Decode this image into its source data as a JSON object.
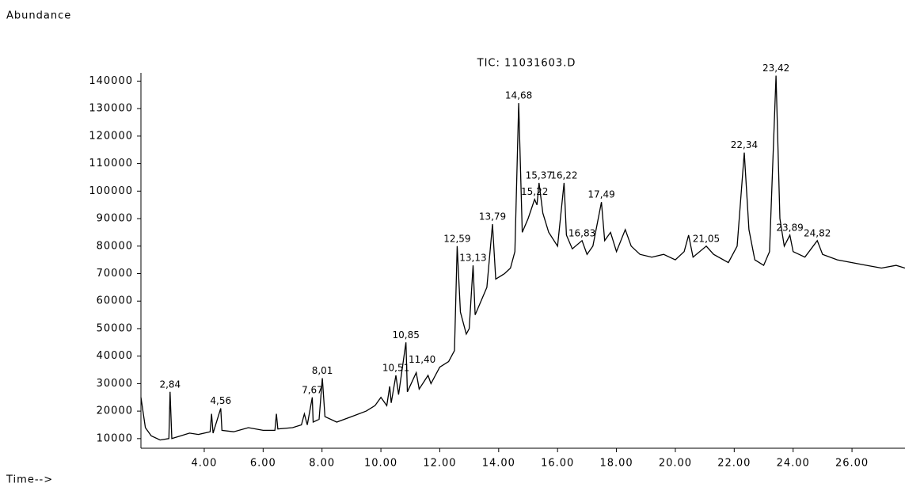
{
  "chart_data": {
    "type": "line",
    "title": "TIC: 11031603.D",
    "y_label": "Abundance",
    "x_label": "Time-->",
    "color": "#000000",
    "xlim": [
      1.85,
      27.8
    ],
    "ylim": [
      6500,
      143000
    ],
    "xticks": [
      {
        "value": 4,
        "label": "4.00"
      },
      {
        "value": 6,
        "label": "6.00"
      },
      {
        "value": 8,
        "label": "8.00"
      },
      {
        "value": 10,
        "label": "10.00"
      },
      {
        "value": 12,
        "label": "12.00"
      },
      {
        "value": 14,
        "label": "14.00"
      },
      {
        "value": 16,
        "label": "16.00"
      },
      {
        "value": 18,
        "label": "18.00"
      },
      {
        "value": 20,
        "label": "20.00"
      },
      {
        "value": 22,
        "label": "22.00"
      },
      {
        "value": 24,
        "label": "24.00"
      },
      {
        "value": 26,
        "label": "26.00"
      }
    ],
    "yticks": [
      10000,
      20000,
      30000,
      40000,
      50000,
      60000,
      70000,
      80000,
      90000,
      100000,
      110000,
      120000,
      130000,
      140000
    ],
    "x": [
      1.85,
      2.0,
      2.2,
      2.5,
      2.8,
      2.84,
      2.9,
      3.2,
      3.5,
      3.8,
      4.2,
      4.25,
      4.3,
      4.56,
      4.6,
      5.0,
      5.5,
      6.0,
      6.4,
      6.45,
      6.5,
      7.0,
      7.3,
      7.4,
      7.5,
      7.67,
      7.7,
      7.9,
      8.01,
      8.1,
      8.5,
      9.0,
      9.5,
      9.8,
      10.0,
      10.2,
      10.3,
      10.35,
      10.51,
      10.6,
      10.85,
      10.9,
      11.2,
      11.3,
      11.6,
      11.7,
      12.0,
      12.3,
      12.5,
      12.59,
      12.7,
      12.9,
      13.0,
      13.13,
      13.2,
      13.4,
      13.6,
      13.79,
      13.9,
      14.2,
      14.4,
      14.55,
      14.68,
      14.8,
      15.0,
      15.22,
      15.3,
      15.37,
      15.5,
      15.7,
      16.0,
      16.22,
      16.3,
      16.5,
      16.83,
      17.0,
      17.2,
      17.49,
      17.6,
      17.8,
      18.0,
      18.3,
      18.5,
      18.8,
      19.2,
      19.6,
      20.0,
      20.3,
      20.45,
      20.6,
      21.05,
      21.3,
      21.8,
      22.1,
      22.34,
      22.5,
      22.7,
      23.0,
      23.2,
      23.42,
      23.55,
      23.7,
      23.89,
      24.0,
      24.4,
      24.82,
      25.0,
      25.5,
      26.0,
      26.5,
      27.0,
      27.5,
      27.8
    ],
    "values": [
      25000,
      14000,
      11000,
      9500,
      10000,
      27000,
      10000,
      11000,
      12000,
      11500,
      12500,
      19000,
      12000,
      21000,
      13000,
      12500,
      14000,
      13000,
      13000,
      19000,
      13500,
      14000,
      15000,
      19000,
      15000,
      25000,
      16000,
      17000,
      32000,
      18000,
      16000,
      18000,
      20000,
      22000,
      25000,
      22000,
      29000,
      23000,
      33000,
      26000,
      45000,
      27000,
      34000,
      28000,
      33000,
      30000,
      36000,
      38000,
      42000,
      80000,
      56000,
      48000,
      50000,
      73000,
      55000,
      60000,
      65000,
      88000,
      68000,
      70000,
      72000,
      78000,
      132000,
      85000,
      90000,
      97000,
      95000,
      103000,
      92000,
      85000,
      80000,
      103000,
      84000,
      79000,
      82000,
      77000,
      80000,
      96000,
      82000,
      85000,
      78000,
      86000,
      80000,
      77000,
      76000,
      77000,
      75000,
      78000,
      84000,
      76000,
      80000,
      77000,
      74000,
      80000,
      114000,
      86000,
      75000,
      73000,
      78000,
      142000,
      90000,
      80000,
      84000,
      78000,
      76000,
      82000,
      77000,
      75000,
      74000,
      73000,
      72000,
      73000,
      72000
    ],
    "annotations": [
      {
        "x": 2.84,
        "y": 27000,
        "text": "2,84"
      },
      {
        "x": 4.56,
        "y": 21000,
        "text": "4,56"
      },
      {
        "x": 7.67,
        "y": 25000,
        "text": "7,67"
      },
      {
        "x": 8.01,
        "y": 32000,
        "text": "8,01"
      },
      {
        "x": 10.51,
        "y": 33000,
        "text": "10,51"
      },
      {
        "x": 10.85,
        "y": 45000,
        "text": "10,85"
      },
      {
        "x": 11.4,
        "y": 36000,
        "text": "11,40"
      },
      {
        "x": 12.59,
        "y": 80000,
        "text": "12,59"
      },
      {
        "x": 13.13,
        "y": 73000,
        "text": "13,13"
      },
      {
        "x": 13.79,
        "y": 88000,
        "text": "13,79"
      },
      {
        "x": 14.68,
        "y": 132000,
        "text": "14,68"
      },
      {
        "x": 15.22,
        "y": 97000,
        "text": "15,22"
      },
      {
        "x": 15.37,
        "y": 103000,
        "text": "15,37"
      },
      {
        "x": 16.22,
        "y": 103000,
        "text": "16,22"
      },
      {
        "x": 16.83,
        "y": 82000,
        "text": "16,83"
      },
      {
        "x": 17.49,
        "y": 96000,
        "text": "17,49"
      },
      {
        "x": 21.05,
        "y": 80000,
        "text": "21,05"
      },
      {
        "x": 22.34,
        "y": 114000,
        "text": "22,34"
      },
      {
        "x": 23.42,
        "y": 142000,
        "text": "23,42"
      },
      {
        "x": 23.89,
        "y": 84000,
        "text": "23,89"
      },
      {
        "x": 24.82,
        "y": 82000,
        "text": "24,82"
      }
    ]
  }
}
